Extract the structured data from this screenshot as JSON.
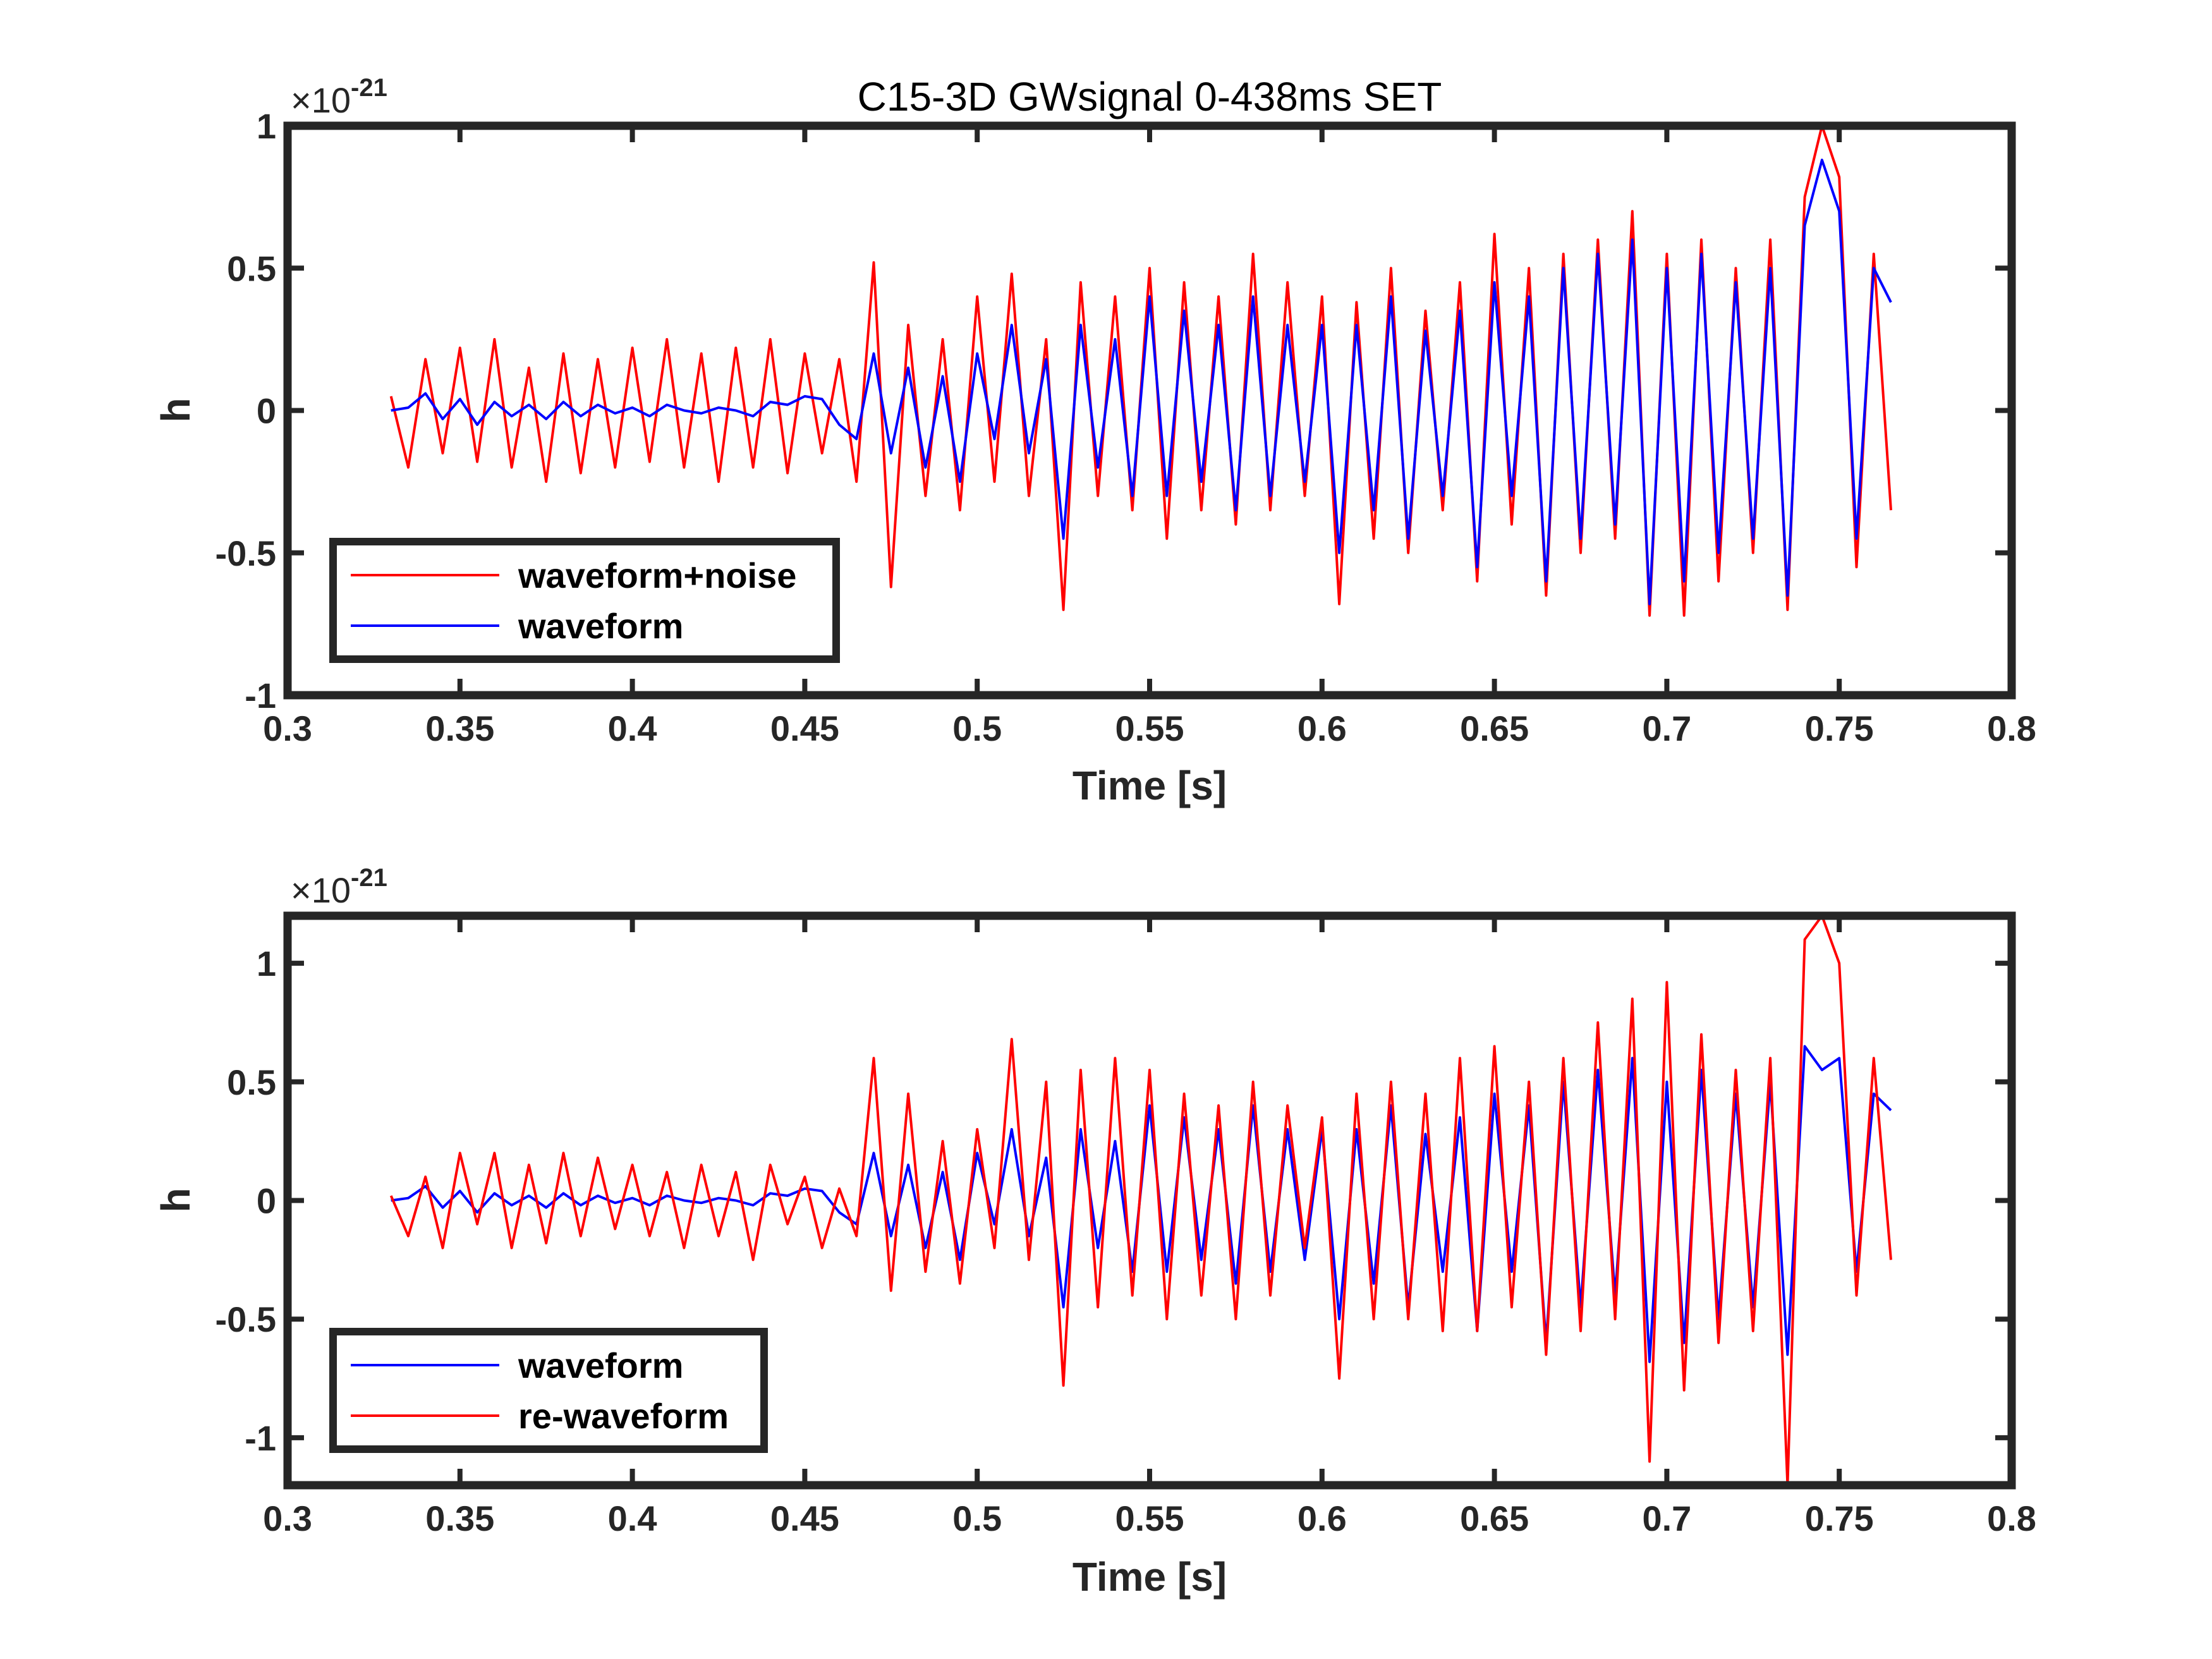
{
  "chart_data": [
    {
      "type": "line",
      "title": "C15-3D GWsignal 0-438ms SET",
      "xlabel": "Time [s]",
      "ylabel": "h",
      "exponent": "×10",
      "exponent_power": "-21",
      "xlim": [
        0.3,
        0.8
      ],
      "ylim": [
        -1,
        1
      ],
      "xticks": [
        0.3,
        0.35,
        0.4,
        0.45,
        0.5,
        0.55,
        0.6,
        0.65,
        0.7,
        0.75,
        0.8
      ],
      "xtick_labels": [
        "0.3",
        "0.35",
        "0.4",
        "0.45",
        "0.5",
        "0.55",
        "0.6",
        "0.65",
        "0.7",
        "0.75",
        "0.8"
      ],
      "yticks": [
        -1,
        -0.5,
        0,
        0.5,
        1
      ],
      "ytick_labels": [
        "-1",
        "-0.5",
        "0",
        "0.5",
        "1"
      ],
      "legend_position": "bottom-left",
      "series": [
        {
          "name": "waveform+noise",
          "color": "#ff0000",
          "x": [
            0.33,
            0.335,
            0.34,
            0.345,
            0.35,
            0.355,
            0.36,
            0.365,
            0.37,
            0.375,
            0.38,
            0.385,
            0.39,
            0.395,
            0.4,
            0.405,
            0.41,
            0.415,
            0.42,
            0.425,
            0.43,
            0.435,
            0.44,
            0.445,
            0.45,
            0.455,
            0.46,
            0.465,
            0.47,
            0.475,
            0.48,
            0.485,
            0.49,
            0.495,
            0.5,
            0.505,
            0.51,
            0.515,
            0.52,
            0.525,
            0.53,
            0.535,
            0.54,
            0.545,
            0.55,
            0.555,
            0.56,
            0.565,
            0.57,
            0.575,
            0.58,
            0.585,
            0.59,
            0.595,
            0.6,
            0.605,
            0.61,
            0.615,
            0.62,
            0.625,
            0.63,
            0.635,
            0.64,
            0.645,
            0.65,
            0.655,
            0.66,
            0.665,
            0.67,
            0.675,
            0.68,
            0.685,
            0.69,
            0.695,
            0.7,
            0.705,
            0.71,
            0.715,
            0.72,
            0.725,
            0.73,
            0.735,
            0.74,
            0.745,
            0.75,
            0.755,
            0.76,
            0.765
          ],
          "values": [
            0.05,
            -0.2,
            0.18,
            -0.15,
            0.22,
            -0.18,
            0.25,
            -0.2,
            0.15,
            -0.25,
            0.2,
            -0.22,
            0.18,
            -0.2,
            0.22,
            -0.18,
            0.25,
            -0.2,
            0.2,
            -0.25,
            0.22,
            -0.2,
            0.25,
            -0.22,
            0.2,
            -0.15,
            0.18,
            -0.25,
            0.52,
            -0.62,
            0.3,
            -0.3,
            0.25,
            -0.35,
            0.4,
            -0.25,
            0.48,
            -0.3,
            0.25,
            -0.7,
            0.45,
            -0.3,
            0.4,
            -0.35,
            0.5,
            -0.45,
            0.45,
            -0.35,
            0.4,
            -0.4,
            0.55,
            -0.35,
            0.45,
            -0.3,
            0.4,
            -0.68,
            0.38,
            -0.45,
            0.5,
            -0.5,
            0.35,
            -0.35,
            0.45,
            -0.6,
            0.62,
            -0.4,
            0.5,
            -0.65,
            0.55,
            -0.5,
            0.6,
            -0.45,
            0.7,
            -0.72,
            0.55,
            -0.72,
            0.6,
            -0.6,
            0.5,
            -0.5,
            0.6,
            -0.7,
            0.75,
            1.0,
            0.82,
            -0.55,
            0.55,
            -0.35
          ]
        },
        {
          "name": "waveform",
          "color": "#0000ff",
          "x": [
            0.33,
            0.335,
            0.34,
            0.345,
            0.35,
            0.355,
            0.36,
            0.365,
            0.37,
            0.375,
            0.38,
            0.385,
            0.39,
            0.395,
            0.4,
            0.405,
            0.41,
            0.415,
            0.42,
            0.425,
            0.43,
            0.435,
            0.44,
            0.445,
            0.45,
            0.455,
            0.46,
            0.465,
            0.47,
            0.475,
            0.48,
            0.485,
            0.49,
            0.495,
            0.5,
            0.505,
            0.51,
            0.515,
            0.52,
            0.525,
            0.53,
            0.535,
            0.54,
            0.545,
            0.55,
            0.555,
            0.56,
            0.565,
            0.57,
            0.575,
            0.58,
            0.585,
            0.59,
            0.595,
            0.6,
            0.605,
            0.61,
            0.615,
            0.62,
            0.625,
            0.63,
            0.635,
            0.64,
            0.645,
            0.65,
            0.655,
            0.66,
            0.665,
            0.67,
            0.675,
            0.68,
            0.685,
            0.69,
            0.695,
            0.7,
            0.705,
            0.71,
            0.715,
            0.72,
            0.725,
            0.73,
            0.735,
            0.74,
            0.745,
            0.75,
            0.755,
            0.76,
            0.765
          ],
          "values": [
            0.0,
            0.01,
            0.06,
            -0.03,
            0.04,
            -0.05,
            0.03,
            -0.02,
            0.02,
            -0.03,
            0.03,
            -0.02,
            0.02,
            -0.01,
            0.01,
            -0.02,
            0.02,
            0.0,
            -0.01,
            0.01,
            0.0,
            -0.02,
            0.03,
            0.02,
            0.05,
            0.04,
            -0.05,
            -0.1,
            0.2,
            -0.15,
            0.15,
            -0.2,
            0.12,
            -0.25,
            0.2,
            -0.1,
            0.3,
            -0.15,
            0.18,
            -0.45,
            0.3,
            -0.2,
            0.25,
            -0.3,
            0.4,
            -0.3,
            0.35,
            -0.25,
            0.3,
            -0.35,
            0.4,
            -0.3,
            0.3,
            -0.25,
            0.3,
            -0.5,
            0.3,
            -0.35,
            0.4,
            -0.45,
            0.28,
            -0.3,
            0.35,
            -0.55,
            0.45,
            -0.3,
            0.4,
            -0.6,
            0.5,
            -0.45,
            0.55,
            -0.4,
            0.6,
            -0.68,
            0.5,
            -0.6,
            0.55,
            -0.5,
            0.45,
            -0.45,
            0.5,
            -0.65,
            0.65,
            0.88,
            0.7,
            -0.45,
            0.5,
            0.38
          ]
        }
      ]
    },
    {
      "type": "line",
      "title": "",
      "xlabel": "Time [s]",
      "ylabel": "h",
      "exponent": "×10",
      "exponent_power": "-21",
      "xlim": [
        0.3,
        0.8
      ],
      "ylim": [
        -1.2,
        1.2
      ],
      "xticks": [
        0.3,
        0.35,
        0.4,
        0.45,
        0.5,
        0.55,
        0.6,
        0.65,
        0.7,
        0.75,
        0.8
      ],
      "xtick_labels": [
        "0.3",
        "0.35",
        "0.4",
        "0.45",
        "0.5",
        "0.55",
        "0.6",
        "0.65",
        "0.7",
        "0.75",
        "0.8"
      ],
      "yticks": [
        -1,
        -0.5,
        0,
        0.5,
        1
      ],
      "ytick_labels": [
        "-1",
        "-0.5",
        "0",
        "0.5",
        "1"
      ],
      "legend_position": "bottom-left",
      "series": [
        {
          "name": "waveform",
          "color": "#0000ff",
          "x": [
            0.33,
            0.335,
            0.34,
            0.345,
            0.35,
            0.355,
            0.36,
            0.365,
            0.37,
            0.375,
            0.38,
            0.385,
            0.39,
            0.395,
            0.4,
            0.405,
            0.41,
            0.415,
            0.42,
            0.425,
            0.43,
            0.435,
            0.44,
            0.445,
            0.45,
            0.455,
            0.46,
            0.465,
            0.47,
            0.475,
            0.48,
            0.485,
            0.49,
            0.495,
            0.5,
            0.505,
            0.51,
            0.515,
            0.52,
            0.525,
            0.53,
            0.535,
            0.54,
            0.545,
            0.55,
            0.555,
            0.56,
            0.565,
            0.57,
            0.575,
            0.58,
            0.585,
            0.59,
            0.595,
            0.6,
            0.605,
            0.61,
            0.615,
            0.62,
            0.625,
            0.63,
            0.635,
            0.64,
            0.645,
            0.65,
            0.655,
            0.66,
            0.665,
            0.67,
            0.675,
            0.68,
            0.685,
            0.69,
            0.695,
            0.7,
            0.705,
            0.71,
            0.715,
            0.72,
            0.725,
            0.73,
            0.735,
            0.74,
            0.745,
            0.75,
            0.755,
            0.76,
            0.765
          ],
          "values": [
            0.0,
            0.01,
            0.06,
            -0.03,
            0.04,
            -0.05,
            0.03,
            -0.02,
            0.02,
            -0.03,
            0.03,
            -0.02,
            0.02,
            -0.01,
            0.01,
            -0.02,
            0.02,
            0.0,
            -0.01,
            0.01,
            0.0,
            -0.02,
            0.03,
            0.02,
            0.05,
            0.04,
            -0.05,
            -0.1,
            0.2,
            -0.15,
            0.15,
            -0.2,
            0.12,
            -0.25,
            0.2,
            -0.1,
            0.3,
            -0.15,
            0.18,
            -0.45,
            0.3,
            -0.2,
            0.25,
            -0.3,
            0.4,
            -0.3,
            0.35,
            -0.25,
            0.3,
            -0.35,
            0.4,
            -0.3,
            0.3,
            -0.25,
            0.3,
            -0.5,
            0.3,
            -0.35,
            0.4,
            -0.45,
            0.28,
            -0.3,
            0.35,
            -0.55,
            0.45,
            -0.3,
            0.4,
            -0.6,
            0.5,
            -0.45,
            0.55,
            -0.4,
            0.6,
            -0.68,
            0.5,
            -0.6,
            0.55,
            -0.5,
            0.45,
            -0.45,
            0.5,
            -0.65,
            0.65,
            0.55,
            0.6,
            -0.3,
            0.45,
            0.38
          ]
        },
        {
          "name": "re-waveform",
          "color": "#ff0000",
          "x": [
            0.33,
            0.335,
            0.34,
            0.345,
            0.35,
            0.355,
            0.36,
            0.365,
            0.37,
            0.375,
            0.38,
            0.385,
            0.39,
            0.395,
            0.4,
            0.405,
            0.41,
            0.415,
            0.42,
            0.425,
            0.43,
            0.435,
            0.44,
            0.445,
            0.45,
            0.455,
            0.46,
            0.465,
            0.47,
            0.475,
            0.48,
            0.485,
            0.49,
            0.495,
            0.5,
            0.505,
            0.51,
            0.515,
            0.52,
            0.525,
            0.53,
            0.535,
            0.54,
            0.545,
            0.55,
            0.555,
            0.56,
            0.565,
            0.57,
            0.575,
            0.58,
            0.585,
            0.59,
            0.595,
            0.6,
            0.605,
            0.61,
            0.615,
            0.62,
            0.625,
            0.63,
            0.635,
            0.64,
            0.645,
            0.65,
            0.655,
            0.66,
            0.665,
            0.67,
            0.675,
            0.68,
            0.685,
            0.69,
            0.695,
            0.7,
            0.705,
            0.71,
            0.715,
            0.72,
            0.725,
            0.73,
            0.735,
            0.74,
            0.745,
            0.75,
            0.755,
            0.76,
            0.765
          ],
          "values": [
            0.02,
            -0.15,
            0.1,
            -0.2,
            0.2,
            -0.1,
            0.2,
            -0.2,
            0.15,
            -0.18,
            0.2,
            -0.15,
            0.18,
            -0.12,
            0.15,
            -0.15,
            0.12,
            -0.2,
            0.15,
            -0.15,
            0.12,
            -0.25,
            0.15,
            -0.1,
            0.1,
            -0.2,
            0.05,
            -0.15,
            0.6,
            -0.38,
            0.45,
            -0.3,
            0.25,
            -0.35,
            0.3,
            -0.2,
            0.68,
            -0.25,
            0.5,
            -0.78,
            0.55,
            -0.45,
            0.6,
            -0.4,
            0.55,
            -0.5,
            0.45,
            -0.4,
            0.4,
            -0.5,
            0.5,
            -0.4,
            0.4,
            -0.2,
            0.35,
            -0.75,
            0.45,
            -0.5,
            0.5,
            -0.5,
            0.45,
            -0.55,
            0.6,
            -0.55,
            0.65,
            -0.45,
            0.5,
            -0.65,
            0.6,
            -0.55,
            0.75,
            -0.5,
            0.85,
            -1.1,
            0.92,
            -0.8,
            0.7,
            -0.6,
            0.55,
            -0.55,
            0.6,
            -1.2,
            1.1,
            1.2,
            1.0,
            -0.4,
            0.6,
            -0.25
          ]
        }
      ]
    }
  ]
}
